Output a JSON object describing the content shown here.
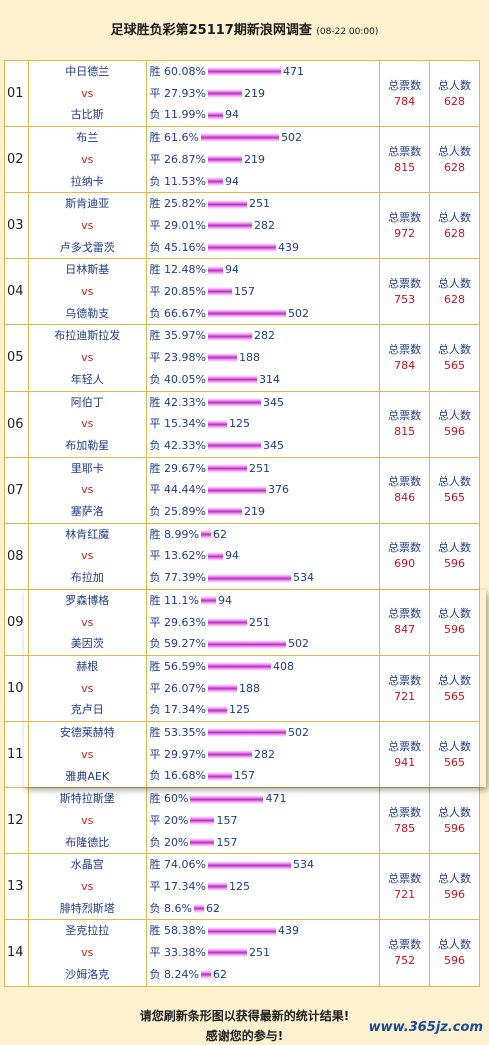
{
  "title": {
    "main": "足球胜负彩第25117期新浪网调查",
    "time": "(08-22 00:00)"
  },
  "labels": {
    "win": "胜",
    "draw": "平",
    "lose": "负",
    "vs": "vs",
    "total_votes": "总票数",
    "total_people": "总人数"
  },
  "colors": {
    "bar": "#d050e0",
    "team": "#1f3c8a",
    "vs": "#cc2222",
    "number": "#cc1122",
    "border": "#e0b94a",
    "background": "#fdf1cf"
  },
  "matches": [
    {
      "idx": "01",
      "home": "中日德兰",
      "away": "古比斯",
      "win_pct": "60.08%",
      "win": 471,
      "draw_pct": "27.93%",
      "draw": 219,
      "lose_pct": "11.99%",
      "lose": 94,
      "votes": "784",
      "people": "628"
    },
    {
      "idx": "02",
      "home": "布兰",
      "away": "拉纳卡",
      "win_pct": " 61.6%",
      "win": 502,
      "draw_pct": "26.87%",
      "draw": 219,
      "lose_pct": "11.53%",
      "lose": 94,
      "votes": "815",
      "people": "628"
    },
    {
      "idx": "03",
      "home": "斯肯迪亚",
      "away": "卢多戈雷茨",
      "win_pct": "25.82%",
      "win": 251,
      "draw_pct": "29.01%",
      "draw": 282,
      "lose_pct": "45.16%",
      "lose": 439,
      "votes": "972",
      "people": "628"
    },
    {
      "idx": "04",
      "home": "日林斯基",
      "away": "乌德勒支",
      "win_pct": "12.48%",
      "win": 94,
      "draw_pct": "20.85%",
      "draw": 157,
      "lose_pct": "66.67%",
      "lose": 502,
      "votes": "753",
      "people": "628"
    },
    {
      "idx": "05",
      "home": "布拉迪斯拉发",
      "away": "年轻人",
      "win_pct": "35.97%",
      "win": 282,
      "draw_pct": "23.98%",
      "draw": 188,
      "lose_pct": "40.05%",
      "lose": 314,
      "votes": "784",
      "people": "565"
    },
    {
      "idx": "06",
      "home": "阿伯丁",
      "away": "布加勒星",
      "win_pct": "42.33%",
      "win": 345,
      "draw_pct": "15.34%",
      "draw": 125,
      "lose_pct": "42.33%",
      "lose": 345,
      "votes": "815",
      "people": "596"
    },
    {
      "idx": "07",
      "home": "里耶卡",
      "away": "塞萨洛",
      "win_pct": "29.67%",
      "win": 251,
      "draw_pct": "44.44%",
      "draw": 376,
      "lose_pct": "25.89%",
      "lose": 219,
      "votes": "846",
      "people": "565"
    },
    {
      "idx": "08",
      "home": "林肯红魔",
      "away": "布拉加",
      "win_pct": " 8.99%",
      "win": 62,
      "draw_pct": "13.62%",
      "draw": 94,
      "lose_pct": "77.39%",
      "lose": 534,
      "votes": "690",
      "people": "596"
    },
    {
      "idx": "09",
      "home": "罗森博格",
      "away": "美因茨",
      "win_pct": " 11.1%",
      "win": 94,
      "draw_pct": "29.63%",
      "draw": 251,
      "lose_pct": "59.27%",
      "lose": 502,
      "votes": "847",
      "people": "596"
    },
    {
      "idx": "10",
      "home": "赫根",
      "away": "克卢日",
      "win_pct": "56.59%",
      "win": 408,
      "draw_pct": "26.07%",
      "draw": 188,
      "lose_pct": "17.34%",
      "lose": 125,
      "votes": "721",
      "people": "565"
    },
    {
      "idx": "11",
      "home": "安德莱赫特",
      "away": "雅典AEK",
      "win_pct": "53.35%",
      "win": 502,
      "draw_pct": "29.97%",
      "draw": 282,
      "lose_pct": "16.68%",
      "lose": 157,
      "votes": "941",
      "people": "565"
    },
    {
      "idx": "12",
      "home": "斯特拉斯堡",
      "away": "布隆德比",
      "win_pct": "60%",
      "win": 471,
      "draw_pct": "20%",
      "draw": 157,
      "lose_pct": "20%",
      "lose": 157,
      "votes": "785",
      "people": "596"
    },
    {
      "idx": "13",
      "home": "水晶宫",
      "away": "腓特烈斯塔",
      "win_pct": "74.06%",
      "win": 534,
      "draw_pct": "17.34%",
      "draw": 125,
      "lose_pct": " 8.6%",
      "lose": 62,
      "votes": "721",
      "people": "596"
    },
    {
      "idx": "14",
      "home": "圣克拉拉",
      "away": "沙姆洛克",
      "win_pct": "58.38%",
      "win": 439,
      "draw_pct": "33.38%",
      "draw": 251,
      "lose_pct": " 8.24%",
      "lose": 62,
      "votes": "752",
      "people": "596"
    }
  ],
  "footer": {
    "line1": "请您刷新条形图以获得最新的统计结果!",
    "line2": "感谢您的参与!"
  },
  "watermark": "www.365jz.com"
}
